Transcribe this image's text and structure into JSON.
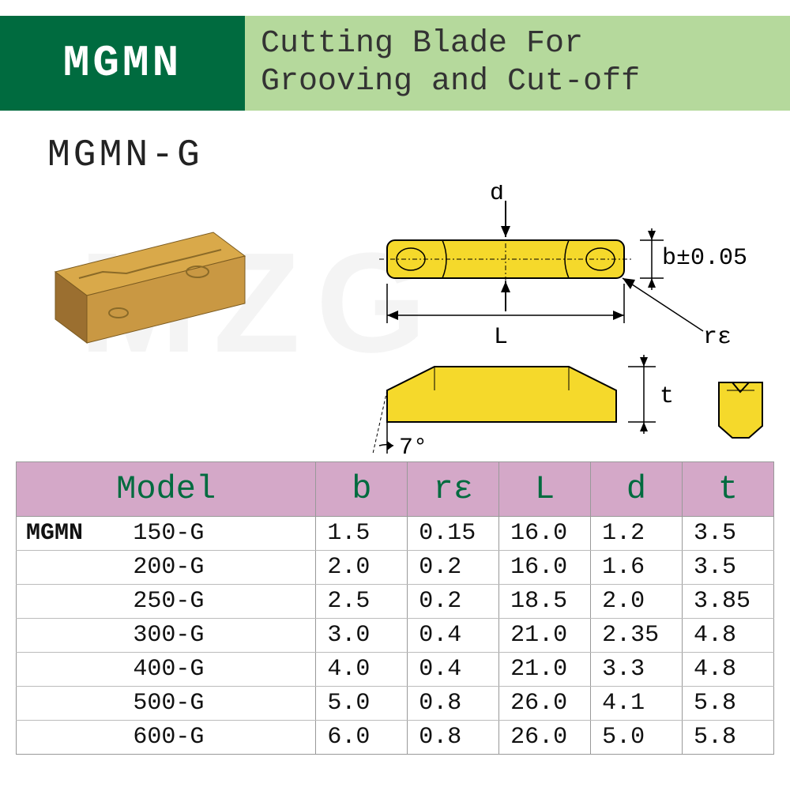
{
  "header": {
    "code": "MGMN",
    "title_line1": "Cutting Blade For",
    "title_line2": "Grooving and Cut-off"
  },
  "subtitle": "MGMN-G",
  "watermark": "MZG",
  "diagram": {
    "top_label_d": "d",
    "side_label_b": "b±0.05",
    "width_label_L": "L",
    "radius_label_re": "rε",
    "thickness_label_t": "t",
    "angle_label": "7°",
    "colors": {
      "insert_fill": "#f5d92b",
      "insert_stroke": "#000000",
      "insert3d_top": "#d9a94a",
      "insert3d_side": "#b7863a",
      "insert3d_front": "#c99843",
      "insert3d_dark": "#9b6f30"
    }
  },
  "table": {
    "headers": [
      "Model",
      "b",
      "rε",
      "L",
      "d",
      "t"
    ],
    "prefix": "MGMN",
    "rows": [
      {
        "model": "150-G",
        "b": "1.5",
        "re": "0.15",
        "L": "16.0",
        "d": "1.2",
        "t": "3.5"
      },
      {
        "model": "200-G",
        "b": "2.0",
        "re": "0.2",
        "L": "16.0",
        "d": "1.6",
        "t": "3.5"
      },
      {
        "model": "250-G",
        "b": "2.5",
        "re": "0.2",
        "L": "18.5",
        "d": "2.0",
        "t": "3.85"
      },
      {
        "model": "300-G",
        "b": "3.0",
        "re": "0.4",
        "L": "21.0",
        "d": "2.35",
        "t": "4.8"
      },
      {
        "model": "400-G",
        "b": "4.0",
        "re": "0.4",
        "L": "21.0",
        "d": "3.3",
        "t": "4.8"
      },
      {
        "model": "500-G",
        "b": "5.0",
        "re": "0.8",
        "L": "26.0",
        "d": "4.1",
        "t": "5.8"
      },
      {
        "model": "600-G",
        "b": "6.0",
        "re": "0.8",
        "L": "26.0",
        "d": "5.0",
        "t": "5.8"
      }
    ],
    "header_bg": "#d4a8c8",
    "header_fg": "#006b3f"
  }
}
